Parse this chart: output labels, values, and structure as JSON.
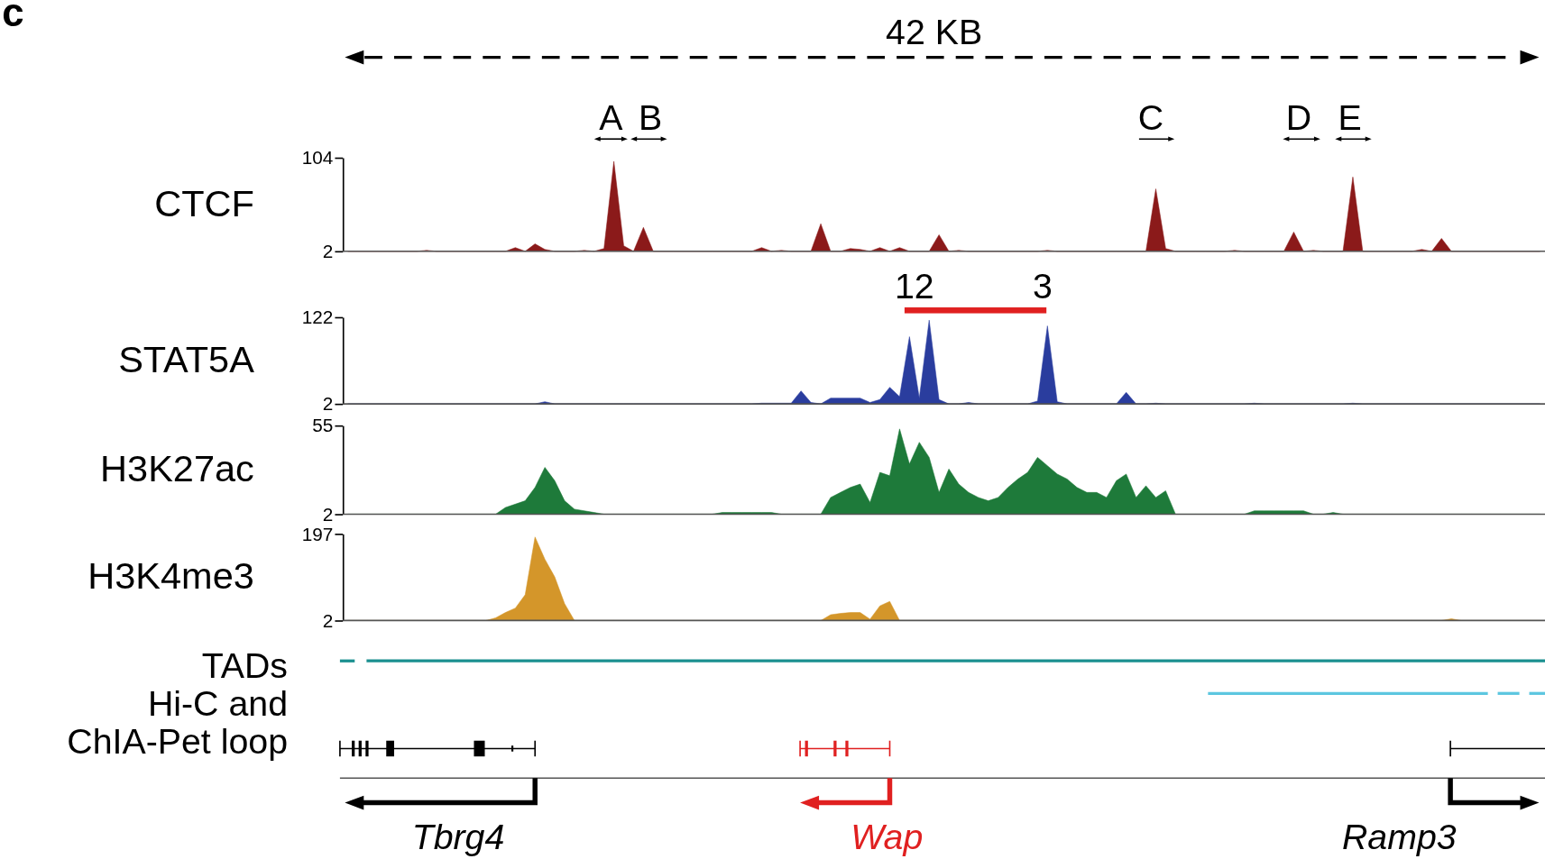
{
  "chart_data": [
    {
      "type": "area",
      "ylabel": "CTCF",
      "color": "#8b1a1a",
      "tick_labels": "y",
      "ylim": [
        2,
        104
      ],
      "yticks": [
        2,
        104
      ],
      "annotations": [
        "c",
        "42 KB",
        "A",
        "B",
        "C",
        "D",
        "E"
      ],
      "categories": [
        null,
        null,
        null,
        null,
        null,
        null,
        null,
        null,
        null,
        null,
        null,
        null,
        null,
        null,
        null,
        null,
        null,
        null,
        null,
        null,
        null,
        null,
        null,
        null,
        null,
        null,
        null,
        null,
        null,
        null,
        null,
        null,
        null,
        null,
        null,
        null,
        null,
        null,
        null,
        null,
        null,
        null,
        null,
        null,
        null,
        null,
        null,
        null,
        null,
        null,
        null,
        null,
        null,
        null,
        null,
        null,
        null,
        null,
        null,
        null,
        null,
        null,
        null,
        null,
        null,
        null,
        null,
        null,
        null,
        null,
        null,
        null,
        null,
        null,
        null,
        null,
        null,
        null,
        null,
        null,
        null,
        null,
        null,
        null,
        null,
        null,
        null,
        null,
        null,
        null,
        null,
        null,
        null,
        null,
        null,
        null,
        null,
        null,
        null,
        null,
        null,
        null,
        null,
        null,
        null,
        null,
        null,
        null,
        null,
        null,
        null,
        null,
        null,
        null,
        null,
        null,
        null,
        null,
        null,
        null,
        null,
        null
      ],
      "values": [
        2,
        2,
        2,
        2,
        2,
        2,
        2,
        2,
        3,
        2,
        2,
        2,
        2,
        2,
        2,
        2,
        2,
        6,
        2,
        10,
        4,
        2,
        2,
        2,
        3,
        2,
        5,
        100,
        8,
        2,
        28,
        2,
        2,
        2,
        2,
        2,
        2,
        2,
        2,
        2,
        2,
        2,
        6,
        2,
        3,
        2,
        2,
        2,
        32,
        2,
        2,
        5,
        4,
        2,
        6,
        2,
        6,
        2,
        2,
        2,
        20,
        2,
        3,
        2,
        2,
        2,
        2,
        2,
        2,
        2,
        2,
        3,
        2,
        2,
        2,
        2,
        2,
        2,
        2,
        2,
        2,
        2,
        70,
        5,
        2,
        2,
        2,
        2,
        2,
        2,
        3,
        2,
        2,
        2,
        2,
        2,
        23,
        2,
        3,
        2,
        2,
        2,
        83,
        2,
        2,
        2,
        2,
        2,
        2,
        4,
        2,
        16,
        2,
        2,
        2,
        2,
        2,
        2,
        2,
        2,
        2,
        2
      ]
    },
    {
      "type": "area",
      "ylabel": "STAT5A",
      "color": "#2a3d9e",
      "tick_labels": "y",
      "ylim": [
        2,
        122
      ],
      "yticks": [
        2,
        122
      ],
      "annotations": [
        "12",
        "3"
      ],
      "categories": [
        null,
        null,
        null,
        null,
        null,
        null,
        null,
        null,
        null,
        null,
        null,
        null,
        null,
        null,
        null,
        null,
        null,
        null,
        null,
        null,
        null,
        null,
        null,
        null,
        null,
        null,
        null,
        null,
        null,
        null,
        null,
        null,
        null,
        null,
        null,
        null,
        null,
        null,
        null,
        null,
        null,
        null,
        null,
        null,
        null,
        null,
        null,
        null,
        null,
        null,
        null,
        null,
        null,
        null,
        null,
        null,
        null,
        null,
        null,
        null,
        null,
        null,
        null,
        null,
        null,
        null,
        null,
        null,
        null,
        null,
        null,
        null,
        null,
        null,
        null,
        null,
        null,
        null,
        null,
        null,
        null,
        null,
        null,
        null,
        null,
        null,
        null,
        null,
        null,
        null,
        null,
        null,
        null,
        null,
        null,
        null,
        null,
        null,
        null,
        null,
        null,
        null,
        null,
        null,
        null,
        null,
        null,
        null,
        null,
        null,
        null,
        null,
        null,
        null,
        null,
        null,
        null,
        null,
        null,
        null,
        null,
        null
      ],
      "values": [
        2,
        2,
        2,
        2,
        2,
        2,
        2,
        2,
        2,
        2,
        2,
        2,
        2,
        2,
        2,
        2,
        2,
        2,
        2,
        2,
        5,
        2,
        2,
        2,
        2,
        2,
        2,
        2,
        2,
        2,
        2,
        2,
        2,
        2,
        2,
        2,
        2,
        2,
        2,
        2,
        2,
        2,
        3,
        3,
        3,
        3,
        20,
        4,
        2,
        10,
        10,
        10,
        10,
        4,
        8,
        25,
        12,
        95,
        10,
        118,
        8,
        2,
        2,
        4,
        2,
        2,
        2,
        2,
        2,
        2,
        6,
        110,
        5,
        2,
        2,
        2,
        2,
        2,
        2,
        18,
        2,
        2,
        3,
        2,
        2,
        2,
        2,
        2,
        2,
        2,
        2,
        2,
        3,
        2,
        2,
        2,
        2,
        2,
        2,
        2,
        2,
        2,
        3,
        2,
        2,
        2,
        2,
        2,
        2,
        2,
        2,
        2,
        2,
        2,
        2,
        2,
        2,
        2,
        2,
        2,
        2,
        2
      ]
    },
    {
      "type": "area",
      "ylabel": "H3K27ac",
      "color": "#1e7a3a",
      "tick_labels": "y",
      "ylim": [
        2,
        55
      ],
      "yticks": [
        2,
        55
      ],
      "categories": [
        null,
        null,
        null,
        null,
        null,
        null,
        null,
        null,
        null,
        null,
        null,
        null,
        null,
        null,
        null,
        null,
        null,
        null,
        null,
        null,
        null,
        null,
        null,
        null,
        null,
        null,
        null,
        null,
        null,
        null,
        null,
        null,
        null,
        null,
        null,
        null,
        null,
        null,
        null,
        null,
        null,
        null,
        null,
        null,
        null,
        null,
        null,
        null,
        null,
        null,
        null,
        null,
        null,
        null,
        null,
        null,
        null,
        null,
        null,
        null,
        null,
        null,
        null,
        null,
        null,
        null,
        null,
        null,
        null,
        null,
        null,
        null,
        null,
        null,
        null,
        null,
        null,
        null,
        null,
        null,
        null,
        null,
        null,
        null,
        null,
        null,
        null,
        null,
        null,
        null,
        null,
        null,
        null,
        null,
        null,
        null,
        null,
        null,
        null,
        null,
        null,
        null,
        null,
        null,
        null,
        null,
        null,
        null,
        null,
        null,
        null,
        null,
        null,
        null,
        null,
        null,
        null,
        null,
        null,
        null,
        null,
        null
      ],
      "values": [
        2,
        2,
        2,
        2,
        2,
        2,
        2,
        2,
        2,
        2,
        2,
        2,
        2,
        2,
        2,
        2,
        6,
        8,
        10,
        18,
        30,
        22,
        10,
        5,
        4,
        3,
        2,
        2,
        2,
        2,
        2,
        2,
        2,
        2,
        2,
        2,
        2,
        2,
        3,
        3,
        3,
        3,
        3,
        3,
        2,
        2,
        2,
        2,
        2,
        12,
        15,
        18,
        20,
        9,
        27,
        25,
        53,
        32,
        45,
        36,
        15,
        29,
        20,
        15,
        12,
        10,
        12,
        18,
        23,
        27,
        36,
        31,
        26,
        23,
        18,
        15,
        15,
        12,
        22,
        26,
        12,
        19,
        12,
        16,
        2,
        2,
        2,
        2,
        2,
        2,
        2,
        2,
        4,
        4,
        4,
        4,
        4,
        4,
        2,
        2,
        3,
        2,
        2,
        2,
        2,
        2,
        2,
        2,
        2,
        2,
        2,
        2,
        2,
        2,
        2,
        2,
        2,
        2,
        2,
        2,
        2,
        2
      ]
    },
    {
      "type": "area",
      "ylabel": "H3K4me3",
      "color": "#d4962a",
      "tick_labels": "y",
      "ylim": [
        2,
        197
      ],
      "yticks": [
        2,
        197
      ],
      "annotations": [
        "TADs",
        "Hi-C and ChIA-Pet loop",
        "Tbrg4",
        "Wap",
        "Ramp3"
      ],
      "categories": [
        null,
        null,
        null,
        null,
        null,
        null,
        null,
        null,
        null,
        null,
        null,
        null,
        null,
        null,
        null,
        null,
        null,
        null,
        null,
        null,
        null,
        null,
        null,
        null,
        null,
        null,
        null,
        null,
        null,
        null,
        null,
        null,
        null,
        null,
        null,
        null,
        null,
        null,
        null,
        null,
        null,
        null,
        null,
        null,
        null,
        null,
        null,
        null,
        null,
        null,
        null,
        null,
        null,
        null,
        null,
        null,
        null,
        null,
        null,
        null,
        null,
        null,
        null,
        null,
        null,
        null,
        null,
        null,
        null,
        null,
        null,
        null,
        null,
        null,
        null,
        null,
        null,
        null,
        null,
        null,
        null,
        null,
        null,
        null,
        null,
        null,
        null,
        null,
        null,
        null,
        null,
        null,
        null,
        null,
        null,
        null,
        null,
        null,
        null,
        null,
        null,
        null,
        null,
        null,
        null,
        null,
        null,
        null,
        null,
        null,
        null,
        null,
        null,
        null,
        null,
        null,
        null,
        null,
        null,
        null,
        null,
        null
      ],
      "values": [
        2,
        2,
        2,
        2,
        2,
        2,
        2,
        2,
        2,
        2,
        2,
        2,
        2,
        2,
        2,
        8,
        20,
        30,
        60,
        190,
        140,
        100,
        40,
        2,
        2,
        2,
        2,
        2,
        2,
        2,
        2,
        2,
        2,
        2,
        2,
        2,
        2,
        2,
        2,
        2,
        2,
        2,
        2,
        2,
        2,
        2,
        2,
        2,
        2,
        15,
        18,
        20,
        20,
        5,
        35,
        45,
        2,
        2,
        2,
        2,
        2,
        2,
        2,
        2,
        2,
        2,
        2,
        2,
        2,
        2,
        2,
        2,
        2,
        2,
        2,
        2,
        2,
        2,
        2,
        2,
        2,
        2,
        2,
        2,
        2,
        2,
        2,
        2,
        2,
        2,
        2,
        2,
        2,
        2,
        2,
        2,
        2,
        2,
        2,
        2,
        2,
        2,
        2,
        2,
        2,
        2,
        2,
        2,
        2,
        2,
        2,
        2,
        6,
        2,
        2,
        2,
        2,
        2,
        2,
        2,
        2,
        2
      ]
    }
  ]
}
